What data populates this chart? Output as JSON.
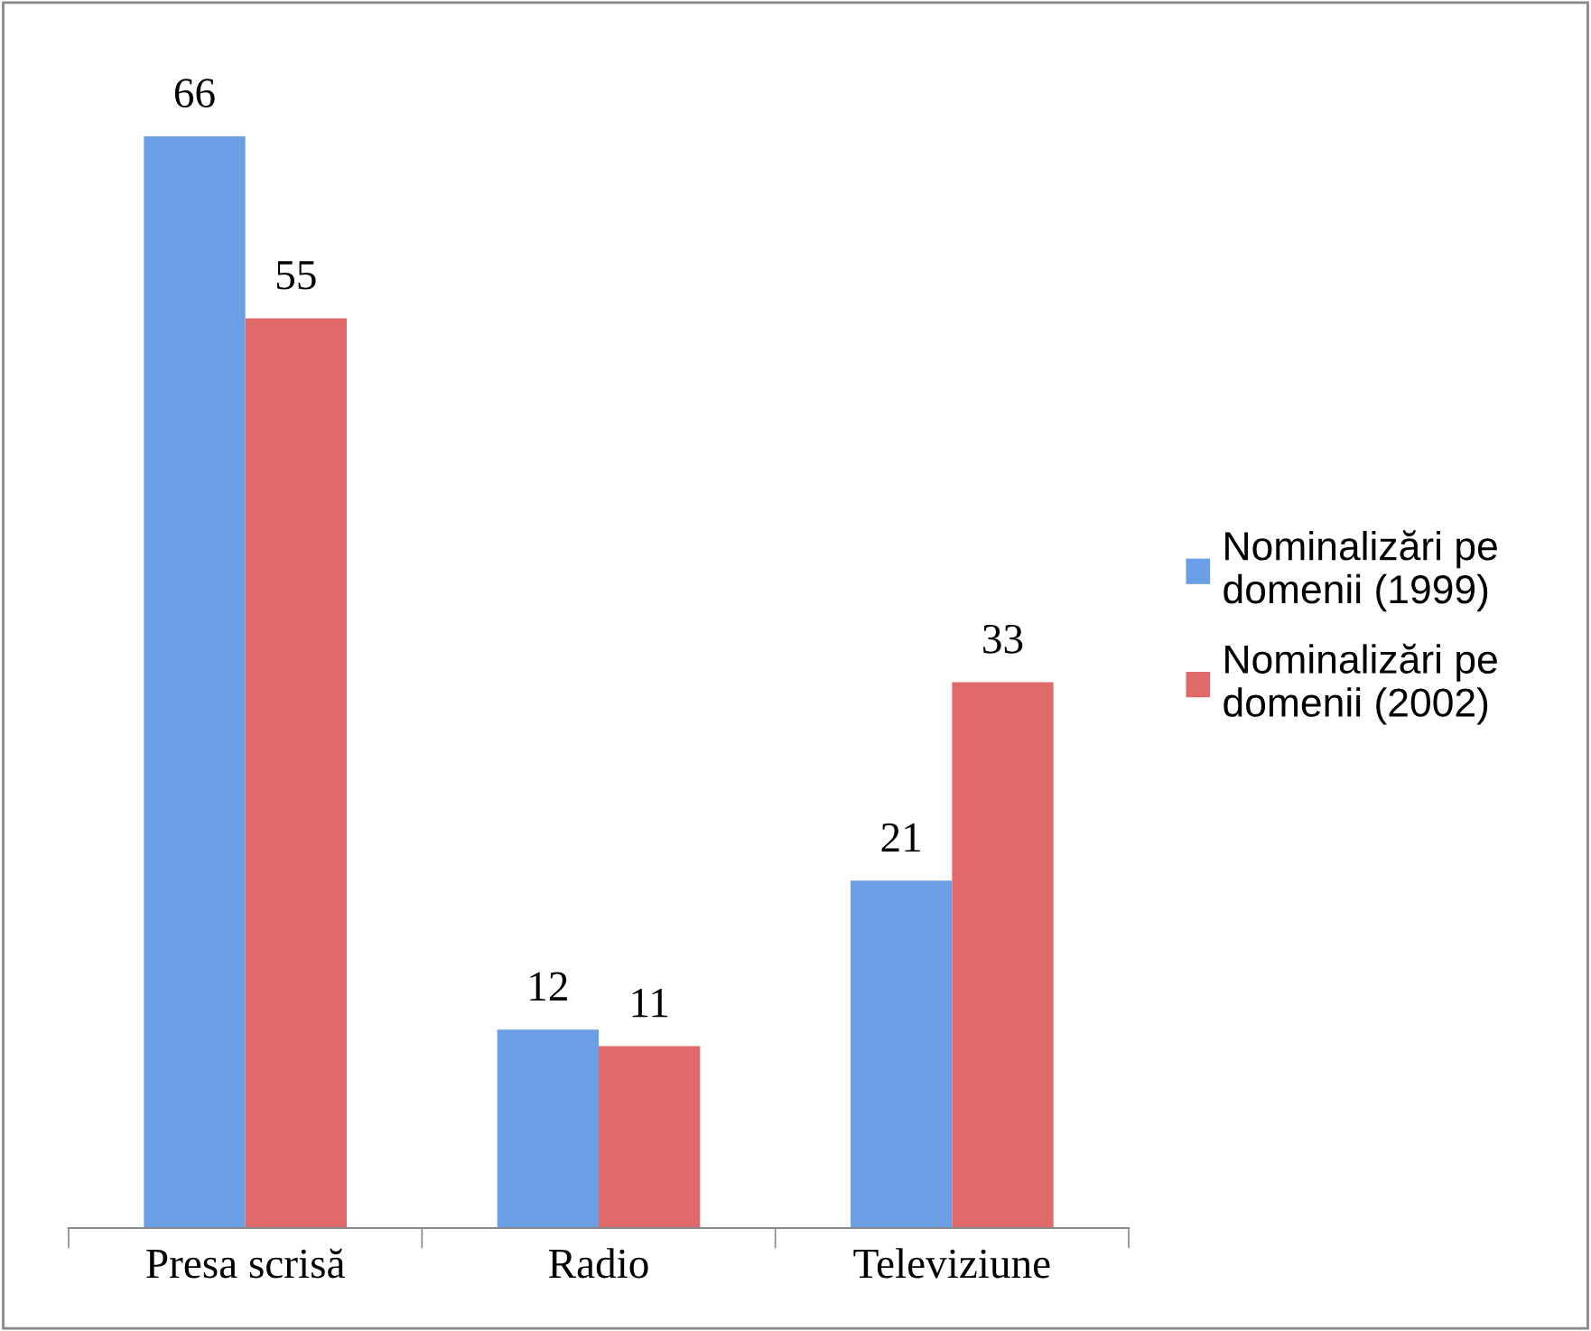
{
  "chart_data": {
    "type": "bar",
    "categories": [
      "Presa scrisă",
      "Radio",
      "Televiziune"
    ],
    "series": [
      {
        "name": "Nominalizări pe domenii (1999)",
        "color": "#6a9fe6",
        "values": [
          66,
          12,
          21
        ]
      },
      {
        "name": "Nominalizări pe domenii (2002)",
        "color": "#e06a6a",
        "values": [
          55,
          11,
          33
        ]
      }
    ],
    "data_labels": true,
    "legend": "right",
    "grid": false
  }
}
